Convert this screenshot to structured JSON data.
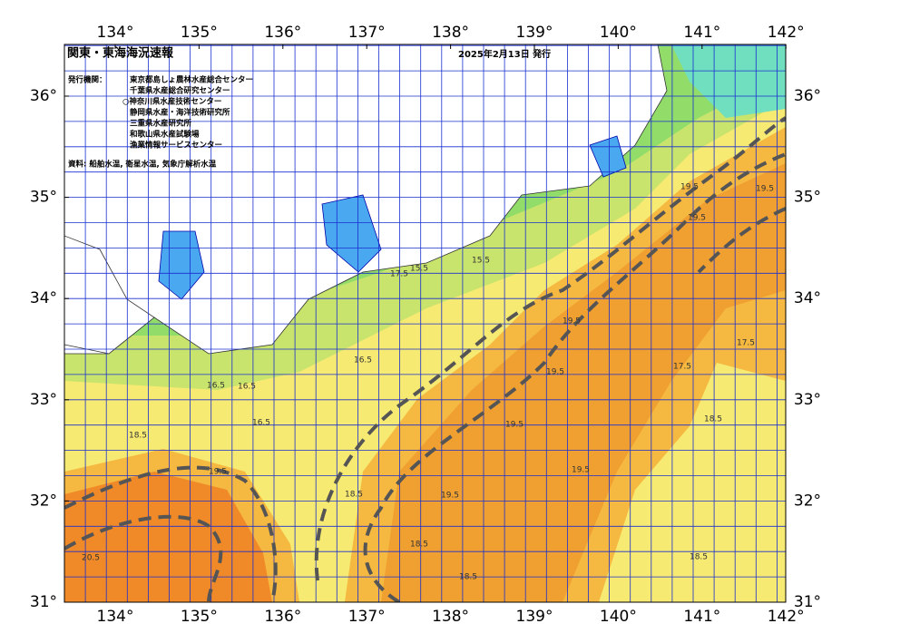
{
  "header": {
    "title": "関東・東海海況速報",
    "date": "2025年2月13日 発行"
  },
  "credits": {
    "label": "発行機関：",
    "organizations": [
      "東京都島しょ農林水産総合センター",
      "千葉県水産総合研究センター",
      "○神奈川県水産技術センター",
      "静岡県水産・海洋技術研究所",
      "三重県水産研究所",
      "和歌山県水産試験場",
      "漁業情報サービスセンター"
    ],
    "source": "資料: 船舶水温, 衛星水温, 気象庁解析水温"
  },
  "map": {
    "xticks": [
      {
        "value": 134,
        "label": "134°"
      },
      {
        "value": 135,
        "label": "135°"
      },
      {
        "value": 136,
        "label": "136°"
      },
      {
        "value": 137,
        "label": "137°"
      },
      {
        "value": 138,
        "label": "138°"
      },
      {
        "value": 139,
        "label": "139°"
      },
      {
        "value": 140,
        "label": "140°"
      },
      {
        "value": 141,
        "label": "141°"
      },
      {
        "value": 142,
        "label": "142°"
      }
    ],
    "yticks": [
      {
        "value": 31,
        "label": "31°"
      },
      {
        "value": 32,
        "label": "32°"
      },
      {
        "value": 33,
        "label": "33°"
      },
      {
        "value": 34,
        "label": "34°"
      },
      {
        "value": 35,
        "label": "35°"
      },
      {
        "value": 36,
        "label": "36°"
      }
    ],
    "contour_labels": [
      "19.5",
      "19.5",
      "19.5",
      "19.5",
      "19.5",
      "19.5",
      "19.5",
      "19.5",
      "18.5",
      "18.5",
      "18.5",
      "18.5",
      "18.5",
      "17.5",
      "17.5",
      "16.5",
      "16.5",
      "16.5",
      "16.5",
      "15.5",
      "15.5",
      "20.5",
      "19.5",
      "18.5",
      "17.5"
    ]
  }
}
